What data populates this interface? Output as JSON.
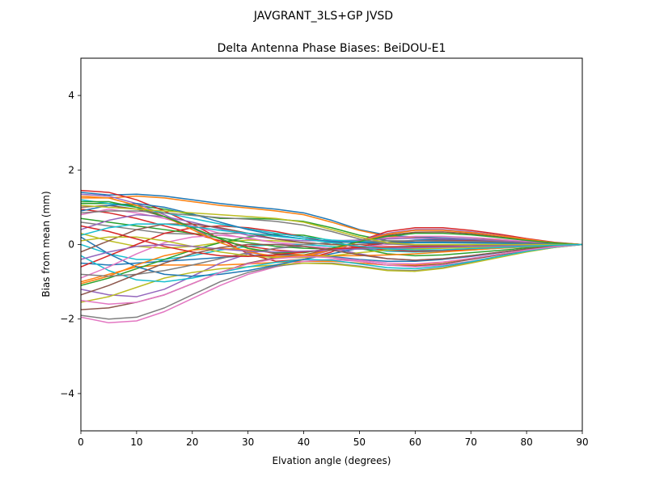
{
  "chart_data": {
    "type": "line",
    "suptitle": "JAVGRANT_3LS+GP JVSD",
    "title": "Delta Antenna Phase Biases: BeiDOU-E1",
    "xlabel": "Elvation angle (degrees)",
    "ylabel": "Bias from mean (mm)",
    "xlim": [
      0,
      90
    ],
    "ylim": [
      -5,
      5
    ],
    "xticks": [
      "0",
      "10",
      "20",
      "30",
      "40",
      "50",
      "60",
      "70",
      "80",
      "90"
    ],
    "yticks": [
      "4",
      "2",
      "0",
      "−2",
      "−4"
    ],
    "grid": false,
    "x": [
      0,
      5,
      10,
      15,
      20,
      25,
      30,
      35,
      40,
      45,
      50,
      55,
      60,
      65,
      70,
      75,
      80,
      85,
      90
    ],
    "color_cycle": [
      "#1f77b4",
      "#ff7f0e",
      "#2ca02c",
      "#d62728",
      "#9467bd",
      "#8c564b",
      "#e377c2",
      "#7f7f7f",
      "#bcbd22",
      "#17becf"
    ],
    "series": [
      {
        "values": [
          1.4,
          1.33,
          1.35,
          1.3,
          1.2,
          1.1,
          1.02,
          0.95,
          0.85,
          0.65,
          0.4,
          0.25,
          0.2,
          0.18,
          0.15,
          0.12,
          0.08,
          0.04,
          0.0
        ]
      },
      {
        "values": [
          1.25,
          1.25,
          1.3,
          1.25,
          1.15,
          1.05,
          0.98,
          0.9,
          0.8,
          0.6,
          0.38,
          0.22,
          0.18,
          0.16,
          0.14,
          0.11,
          0.07,
          0.03,
          0.0
        ]
      },
      {
        "values": [
          1.1,
          1.1,
          1.05,
          0.95,
          0.8,
          0.7,
          0.7,
          0.68,
          0.62,
          0.45,
          0.25,
          0.1,
          0.05,
          0.05,
          0.05,
          0.04,
          0.03,
          0.02,
          0.0
        ]
      },
      {
        "values": [
          1.45,
          1.4,
          1.2,
          0.9,
          0.55,
          0.15,
          -0.25,
          -0.45,
          -0.4,
          -0.2,
          0.1,
          0.35,
          0.45,
          0.45,
          0.38,
          0.28,
          0.16,
          0.06,
          0.0
        ]
      },
      {
        "values": [
          1.35,
          1.3,
          1.1,
          0.8,
          0.45,
          0.05,
          -0.2,
          -0.35,
          -0.35,
          -0.15,
          0.1,
          0.3,
          0.4,
          0.4,
          0.34,
          0.25,
          0.14,
          0.05,
          0.0
        ]
      },
      {
        "values": [
          1.0,
          1.05,
          0.95,
          0.75,
          0.45,
          0.15,
          -0.1,
          -0.25,
          -0.28,
          -0.12,
          0.08,
          0.25,
          0.33,
          0.34,
          0.29,
          0.21,
          0.12,
          0.05,
          0.0
        ]
      },
      {
        "values": [
          0.8,
          0.95,
          0.85,
          0.7,
          0.5,
          0.3,
          0.15,
          0.05,
          0.0,
          0.05,
          0.12,
          0.18,
          0.22,
          0.22,
          0.19,
          0.14,
          0.08,
          0.03,
          0.0
        ]
      },
      {
        "values": [
          0.6,
          0.5,
          0.4,
          0.3,
          0.28,
          0.3,
          0.3,
          0.25,
          0.15,
          0.05,
          -0.05,
          -0.1,
          -0.1,
          -0.08,
          -0.06,
          -0.04,
          -0.03,
          -0.01,
          0.0
        ]
      },
      {
        "values": [
          0.3,
          0.1,
          -0.05,
          -0.1,
          -0.05,
          0.05,
          0.12,
          0.1,
          0.05,
          0.0,
          -0.05,
          -0.08,
          -0.08,
          -0.07,
          -0.05,
          -0.04,
          -0.02,
          -0.01,
          0.0
        ]
      },
      {
        "values": [
          0.0,
          -0.25,
          -0.4,
          -0.4,
          -0.3,
          -0.15,
          -0.05,
          0.0,
          0.0,
          -0.05,
          -0.12,
          -0.18,
          -0.2,
          -0.18,
          -0.15,
          -0.1,
          -0.06,
          -0.02,
          0.0
        ]
      },
      {
        "values": [
          -0.5,
          -0.55,
          -0.5,
          -0.45,
          -0.4,
          -0.35,
          -0.3,
          -0.28,
          -0.28,
          -0.32,
          -0.4,
          -0.45,
          -0.45,
          -0.4,
          -0.32,
          -0.22,
          -0.12,
          -0.05,
          0.0
        ]
      },
      {
        "values": [
          -1.0,
          -0.8,
          -0.6,
          -0.55,
          -0.55,
          -0.55,
          -0.52,
          -0.48,
          -0.45,
          -0.45,
          -0.5,
          -0.55,
          -0.55,
          -0.48,
          -0.38,
          -0.26,
          -0.15,
          -0.06,
          0.0
        ]
      },
      {
        "values": [
          -1.1,
          -0.9,
          -0.65,
          -0.4,
          -0.15,
          0.05,
          0.2,
          0.28,
          0.25,
          0.1,
          -0.1,
          -0.25,
          -0.3,
          -0.28,
          -0.22,
          -0.16,
          -0.09,
          -0.03,
          0.0
        ]
      },
      {
        "values": [
          -0.6,
          -0.3,
          0.0,
          0.3,
          0.45,
          0.5,
          0.45,
          0.35,
          0.2,
          0.05,
          -0.08,
          -0.15,
          -0.18,
          -0.16,
          -0.13,
          -0.09,
          -0.05,
          -0.02,
          0.0
        ]
      },
      {
        "values": [
          -1.2,
          -1.35,
          -1.4,
          -1.2,
          -0.85,
          -0.5,
          -0.25,
          -0.1,
          -0.05,
          -0.1,
          -0.25,
          -0.38,
          -0.42,
          -0.38,
          -0.3,
          -0.21,
          -0.12,
          -0.05,
          0.0
        ]
      },
      {
        "values": [
          -1.75,
          -1.7,
          -1.55,
          -1.35,
          -1.05,
          -0.75,
          -0.5,
          -0.35,
          -0.3,
          -0.35,
          -0.45,
          -0.55,
          -0.58,
          -0.52,
          -0.4,
          -0.28,
          -0.16,
          -0.06,
          0.0
        ]
      },
      {
        "values": [
          -1.95,
          -2.1,
          -2.05,
          -1.8,
          -1.45,
          -1.1,
          -0.8,
          -0.6,
          -0.45,
          -0.4,
          -0.45,
          -0.55,
          -0.6,
          -0.55,
          -0.45,
          -0.32,
          -0.18,
          -0.07,
          0.0
        ]
      },
      {
        "values": [
          -1.9,
          -2.0,
          -1.95,
          -1.7,
          -1.35,
          -1.0,
          -0.75,
          -0.58,
          -0.5,
          -0.5,
          -0.58,
          -0.68,
          -0.7,
          -0.62,
          -0.48,
          -0.34,
          -0.19,
          -0.08,
          0.0
        ]
      },
      {
        "values": [
          -1.55,
          -1.4,
          -1.15,
          -0.9,
          -0.75,
          -0.65,
          -0.6,
          -0.55,
          -0.5,
          -0.52,
          -0.6,
          -0.7,
          -0.72,
          -0.64,
          -0.5,
          -0.35,
          -0.2,
          -0.08,
          0.0
        ]
      },
      {
        "values": [
          -0.3,
          -0.7,
          -0.95,
          -1.0,
          -0.9,
          -0.75,
          -0.6,
          -0.48,
          -0.4,
          -0.42,
          -0.52,
          -0.62,
          -0.65,
          -0.58,
          -0.46,
          -0.32,
          -0.18,
          -0.07,
          0.0
        ]
      },
      {
        "values": [
          0.2,
          -0.25,
          -0.6,
          -0.8,
          -0.85,
          -0.8,
          -0.7,
          -0.55,
          -0.4,
          -0.25,
          -0.1,
          0.05,
          0.12,
          0.14,
          0.12,
          0.09,
          0.05,
          0.02,
          0.0
        ]
      },
      {
        "values": [
          -1.05,
          -0.85,
          -0.55,
          -0.3,
          -0.15,
          -0.1,
          -0.15,
          -0.22,
          -0.28,
          -0.3,
          -0.3,
          -0.28,
          -0.25,
          -0.2,
          -0.15,
          -0.1,
          -0.06,
          -0.02,
          0.0
        ]
      },
      {
        "values": [
          0.7,
          0.6,
          0.5,
          0.4,
          0.3,
          0.18,
          0.05,
          -0.05,
          -0.1,
          -0.12,
          -0.12,
          -0.1,
          -0.08,
          -0.06,
          -0.05,
          -0.03,
          -0.02,
          -0.01,
          0.0
        ]
      },
      {
        "values": [
          0.95,
          0.85,
          0.7,
          0.5,
          0.3,
          0.1,
          -0.05,
          -0.15,
          -0.2,
          -0.15,
          -0.05,
          0.05,
          0.1,
          0.11,
          0.1,
          0.07,
          0.04,
          0.02,
          0.0
        ]
      },
      {
        "values": [
          0.4,
          0.65,
          0.8,
          0.75,
          0.6,
          0.42,
          0.25,
          0.15,
          0.1,
          0.1,
          0.12,
          0.15,
          0.17,
          0.16,
          0.14,
          0.1,
          0.06,
          0.02,
          0.0
        ]
      },
      {
        "values": [
          -0.2,
          0.1,
          0.4,
          0.55,
          0.55,
          0.45,
          0.3,
          0.15,
          0.05,
          0.0,
          0.0,
          0.05,
          0.1,
          0.1,
          0.09,
          0.07,
          0.04,
          0.02,
          0.0
        ]
      },
      {
        "values": [
          -0.9,
          -0.6,
          -0.25,
          0.05,
          0.2,
          0.25,
          0.18,
          0.05,
          -0.05,
          -0.1,
          -0.08,
          0.0,
          0.05,
          0.07,
          0.06,
          0.05,
          0.03,
          0.01,
          0.0
        ]
      },
      {
        "values": [
          -0.8,
          -0.85,
          -0.8,
          -0.7,
          -0.55,
          -0.38,
          -0.22,
          -0.1,
          0.0,
          0.05,
          0.08,
          0.1,
          0.1,
          0.09,
          0.08,
          0.06,
          0.03,
          0.01,
          0.0
        ]
      },
      {
        "values": [
          0.1,
          0.2,
          0.2,
          0.1,
          -0.05,
          -0.2,
          -0.3,
          -0.35,
          -0.35,
          -0.3,
          -0.22,
          -0.15,
          -0.12,
          -0.1,
          -0.08,
          -0.06,
          -0.03,
          -0.01,
          0.0
        ]
      },
      {
        "values": [
          1.2,
          1.1,
          1.0,
          0.85,
          0.7,
          0.55,
          0.42,
          0.3,
          0.2,
          0.12,
          0.08,
          0.05,
          0.05,
          0.05,
          0.04,
          0.03,
          0.02,
          0.01,
          0.0
        ]
      },
      {
        "values": [
          0.9,
          1.05,
          1.1,
          1.0,
          0.82,
          0.6,
          0.4,
          0.25,
          0.15,
          0.08,
          0.05,
          0.05,
          0.06,
          0.06,
          0.05,
          0.04,
          0.02,
          0.01,
          0.0
        ]
      },
      {
        "values": [
          1.3,
          1.25,
          1.05,
          0.75,
          0.4,
          0.05,
          -0.2,
          -0.32,
          -0.3,
          -0.15,
          0.08,
          0.28,
          0.38,
          0.38,
          0.32,
          0.24,
          0.14,
          0.05,
          0.0
        ]
      },
      {
        "values": [
          1.15,
          1.15,
          1.0,
          0.75,
          0.45,
          0.15,
          -0.1,
          -0.22,
          -0.22,
          -0.1,
          0.08,
          0.22,
          0.3,
          0.3,
          0.26,
          0.19,
          0.11,
          0.04,
          0.0
        ]
      },
      {
        "values": [
          0.5,
          0.35,
          0.15,
          -0.05,
          -0.2,
          -0.3,
          -0.32,
          -0.28,
          -0.2,
          -0.12,
          -0.08,
          -0.06,
          -0.05,
          -0.05,
          -0.04,
          -0.03,
          -0.02,
          -0.01,
          0.0
        ]
      },
      {
        "values": [
          -0.4,
          -0.2,
          -0.05,
          0.0,
          -0.05,
          -0.12,
          -0.18,
          -0.2,
          -0.18,
          -0.15,
          -0.12,
          -0.1,
          -0.08,
          -0.07,
          -0.05,
          -0.04,
          -0.02,
          -0.01,
          0.0
        ]
      },
      {
        "values": [
          -1.35,
          -1.1,
          -0.8,
          -0.5,
          -0.25,
          -0.08,
          0.0,
          0.0,
          -0.05,
          -0.15,
          -0.28,
          -0.38,
          -0.42,
          -0.38,
          -0.3,
          -0.21,
          -0.12,
          -0.05,
          0.0
        ]
      },
      {
        "values": [
          -1.5,
          -1.6,
          -1.55,
          -1.35,
          -1.05,
          -0.75,
          -0.52,
          -0.38,
          -0.32,
          -0.35,
          -0.42,
          -0.5,
          -0.52,
          -0.47,
          -0.37,
          -0.26,
          -0.15,
          -0.06,
          0.0
        ]
      },
      {
        "values": [
          0.85,
          0.9,
          0.9,
          0.85,
          0.78,
          0.72,
          0.68,
          0.62,
          0.52,
          0.35,
          0.15,
          0.02,
          -0.02,
          -0.02,
          -0.01,
          -0.01,
          0.0,
          0.0,
          0.0
        ]
      },
      {
        "values": [
          1.05,
          1.0,
          0.95,
          0.9,
          0.85,
          0.8,
          0.75,
          0.7,
          0.6,
          0.4,
          0.2,
          0.05,
          0.0,
          0.0,
          0.0,
          0.0,
          0.0,
          0.0,
          0.0
        ]
      },
      {
        "values": [
          0.25,
          0.45,
          0.55,
          0.55,
          0.48,
          0.38,
          0.3,
          0.22,
          0.15,
          0.05,
          -0.05,
          -0.12,
          -0.15,
          -0.14,
          -0.11,
          -0.08,
          -0.05,
          -0.02,
          0.0
        ]
      }
    ]
  }
}
